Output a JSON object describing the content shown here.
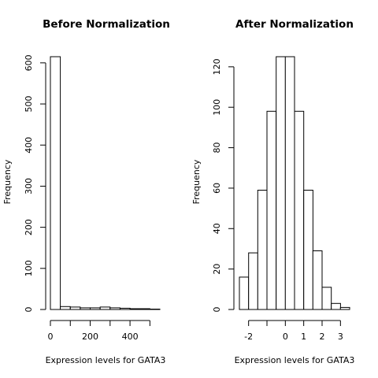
{
  "chart_data": [
    {
      "type": "bar",
      "title": "Before Normalization",
      "xlabel": "Expression levels for GATA3",
      "ylabel": "Frequency",
      "bin_edges": [
        0,
        50,
        100,
        150,
        200,
        250,
        300,
        350,
        400,
        450,
        500,
        550
      ],
      "values": [
        615,
        7,
        6,
        4,
        4,
        6,
        4,
        3,
        2,
        2,
        1
      ],
      "x_ticks": [
        0,
        100,
        200,
        300,
        400,
        500
      ],
      "x_tick_labels": [
        "0",
        "",
        "200",
        "",
        "400",
        ""
      ],
      "y_ticks": [
        0,
        100,
        200,
        300,
        400,
        500,
        600
      ],
      "y_tick_labels": [
        "0",
        "100",
        "200",
        "300",
        "400",
        "500",
        "600"
      ],
      "xlim": [
        0,
        550
      ],
      "ylim": [
        0,
        615
      ],
      "grid": false
    },
    {
      "type": "bar",
      "title": "After Normalization",
      "xlabel": "Expression levels for GATA3",
      "ylabel": "Frequency",
      "bin_edges": [
        -2.5,
        -2.0,
        -1.5,
        -1.0,
        -0.5,
        0.0,
        0.5,
        1.0,
        1.5,
        2.0,
        2.5,
        3.0,
        3.5
      ],
      "values": [
        16,
        28,
        59,
        98,
        125,
        125,
        98,
        59,
        29,
        11,
        3,
        1
      ],
      "x_ticks": [
        -2,
        -1,
        0,
        1,
        2,
        3
      ],
      "x_tick_labels": [
        "-2",
        "",
        "0",
        "1",
        "2",
        "3"
      ],
      "y_ticks": [
        0,
        20,
        40,
        60,
        80,
        100,
        120
      ],
      "y_tick_labels": [
        "0",
        "20",
        "40",
        "60",
        "80",
        "100",
        "120"
      ],
      "xlim": [
        -2.5,
        3.5
      ],
      "ylim": [
        0,
        125
      ],
      "grid": false
    }
  ]
}
